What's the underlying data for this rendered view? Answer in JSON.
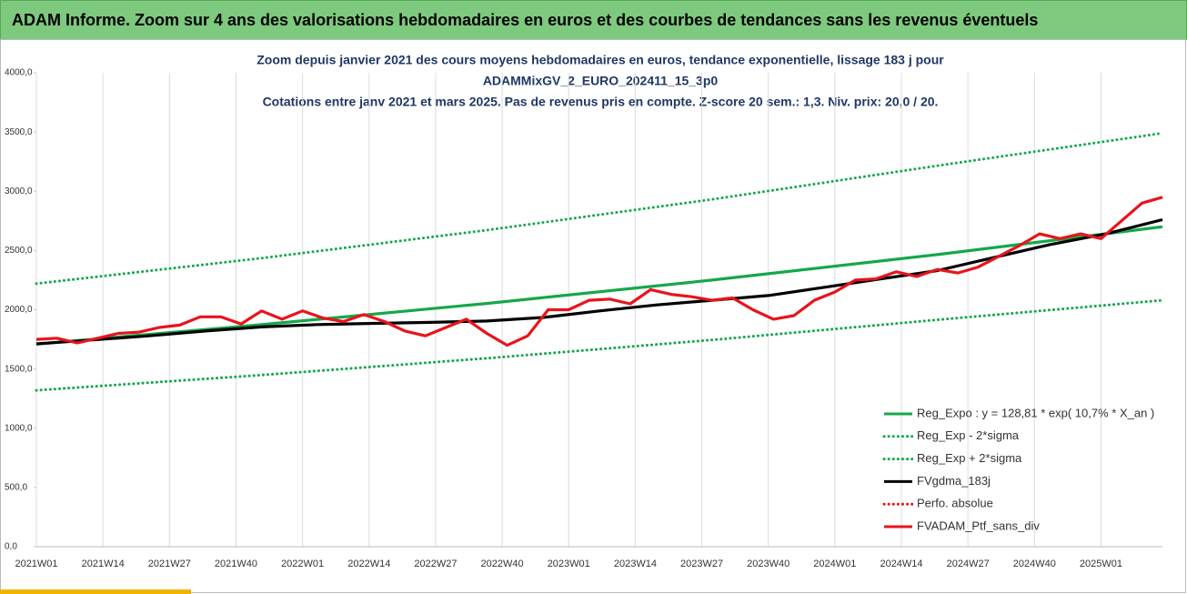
{
  "header": {
    "title": "ADAM Informe. Zoom sur 4 ans des valorisations hebdomadaires en euros et des courbes de tendances sans les revenus éventuels"
  },
  "chart_data": {
    "type": "line",
    "title_lines": [
      "Zoom depuis janvier 2021 des cours moyens hebdomadaires  en euros, tendance exponentielle, lissage 183 j pour",
      "ADAMMixGV_2_EURO_202411_15_3p0",
      "Cotations entre janv 2021 et mars 2025. Pas de revenus pris en compte. Z-score 20 sem.: 1,3. Niv. prix: 20,0 / 20."
    ],
    "xlim": [
      0,
      220
    ],
    "xticks": [
      {
        "value": 0,
        "label": "2021W01"
      },
      {
        "value": 13,
        "label": "2021W14"
      },
      {
        "value": 26,
        "label": "2021W27"
      },
      {
        "value": 39,
        "label": "2021W40"
      },
      {
        "value": 52,
        "label": "2022W01"
      },
      {
        "value": 65,
        "label": "2022W14"
      },
      {
        "value": 78,
        "label": "2022W27"
      },
      {
        "value": 91,
        "label": "2022W40"
      },
      {
        "value": 104,
        "label": "2023W01"
      },
      {
        "value": 117,
        "label": "2023W14"
      },
      {
        "value": 130,
        "label": "2023W27"
      },
      {
        "value": 143,
        "label": "2023W40"
      },
      {
        "value": 156,
        "label": "2024W01"
      },
      {
        "value": 169,
        "label": "2024W14"
      },
      {
        "value": 182,
        "label": "2024W27"
      },
      {
        "value": 195,
        "label": "2024W40"
      },
      {
        "value": 208,
        "label": "2025W01"
      }
    ],
    "ylim": [
      0,
      4000
    ],
    "yticks": [
      {
        "value": 0,
        "label": "0,0"
      },
      {
        "value": 500,
        "label": "500,0"
      },
      {
        "value": 1000,
        "label": "1000,0"
      },
      {
        "value": 1500,
        "label": "1500,0"
      },
      {
        "value": 2000,
        "label": "2000,0"
      },
      {
        "value": 2500,
        "label": "2500,0"
      },
      {
        "value": 3000,
        "label": "3000,0"
      },
      {
        "value": 3500,
        "label": "3500,0"
      },
      {
        "value": 4000,
        "label": "4000,0"
      }
    ],
    "grid": "x",
    "legend": "lower right",
    "series": [
      {
        "name": "Reg_Expo : y = 128,81 * exp( 10,7% *  X_an )",
        "color": "#14a84a",
        "style": "solid",
        "x": [
          0,
          44,
          88,
          132,
          176,
          220
        ],
        "values": [
          1710,
          1874,
          2053,
          2250,
          2465,
          2700
        ]
      },
      {
        "name": "Reg_Exp - 2*sigma",
        "color": "#14a84a",
        "style": "dotted",
        "x": [
          0,
          44,
          88,
          132,
          176,
          220
        ],
        "values": [
          1320,
          1449,
          1590,
          1745,
          1915,
          2080
        ]
      },
      {
        "name": "Reg_Exp + 2*sigma",
        "color": "#14a84a",
        "style": "dotted",
        "x": [
          0,
          44,
          88,
          132,
          176,
          220
        ],
        "values": [
          2220,
          2435,
          2672,
          2931,
          3215,
          3490
        ]
      },
      {
        "name": "FVgdma_183j",
        "color": "#000000",
        "style": "solid",
        "x": [
          0,
          11,
          22,
          33,
          44,
          55,
          66,
          77,
          88,
          99,
          110,
          121,
          132,
          143,
          154,
          165,
          176,
          187,
          198,
          209,
          220
        ],
        "values": [
          1712,
          1745,
          1780,
          1820,
          1855,
          1875,
          1885,
          1893,
          1905,
          1935,
          1990,
          2040,
          2080,
          2120,
          2190,
          2260,
          2330,
          2440,
          2550,
          2640,
          2760
        ]
      },
      {
        "name": "Perfo. absolue",
        "color": "#e8141c",
        "style": "dotted",
        "x": [],
        "values": []
      },
      {
        "name": "FVADAM_Ptf_sans_div",
        "color": "#e8141c",
        "style": "solid",
        "x": [
          0,
          4,
          8,
          12,
          16,
          20,
          24,
          28,
          32,
          36,
          40,
          44,
          48,
          52,
          56,
          60,
          64,
          68,
          72,
          76,
          80,
          84,
          88,
          92,
          96,
          100,
          104,
          108,
          112,
          116,
          120,
          124,
          128,
          132,
          136,
          140,
          144,
          148,
          152,
          156,
          160,
          164,
          168,
          172,
          176,
          180,
          184,
          188,
          192,
          196,
          200,
          204,
          208,
          212,
          216,
          220
        ],
        "values": [
          1750,
          1760,
          1720,
          1760,
          1800,
          1810,
          1850,
          1870,
          1940,
          1940,
          1880,
          1990,
          1920,
          1990,
          1930,
          1900,
          1960,
          1900,
          1820,
          1780,
          1850,
          1920,
          1800,
          1700,
          1780,
          2000,
          2000,
          2080,
          2090,
          2050,
          2170,
          2130,
          2110,
          2080,
          2100,
          2000,
          1920,
          1950,
          2080,
          2150,
          2250,
          2260,
          2320,
          2280,
          2340,
          2310,
          2360,
          2450,
          2540,
          2640,
          2600,
          2640,
          2600,
          2750,
          2900,
          2950
        ]
      }
    ]
  }
}
